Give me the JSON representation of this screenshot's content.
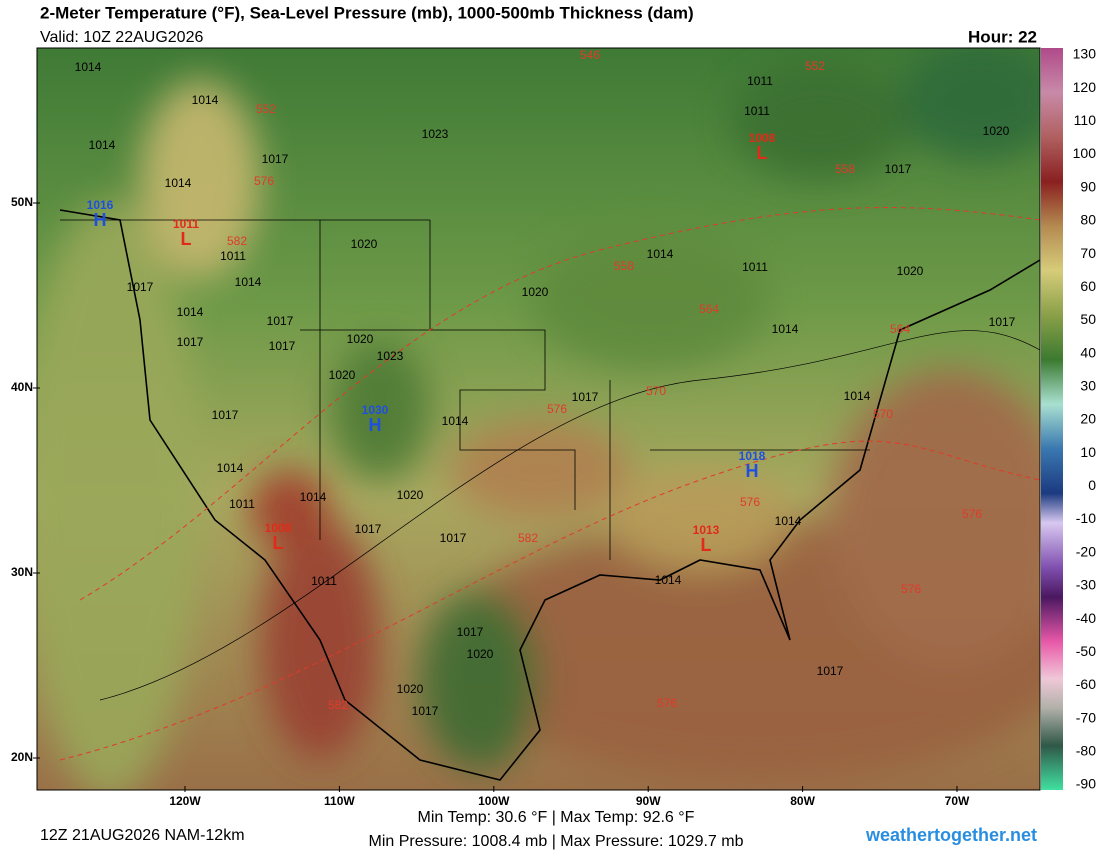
{
  "header": {
    "title": "2-Meter Temperature (°F), Sea-Level Pressure (mb), 1000-500mb Thickness (dam)",
    "valid": "Valid: 10Z 22AUG2026",
    "hour": "Hour: 22"
  },
  "footer": {
    "run": "12Z 21AUG2026 NAM-12km",
    "temps": "Min Temp:  30.6 °F | Max Temp:  92.6 °F",
    "pressures": "Min Pressure: 1008.4 mb | Max Pressure: 1029.7 mb",
    "site": "weathertogether.net"
  },
  "colorbar": {
    "ticks": [
      130,
      120,
      110,
      100,
      90,
      80,
      70,
      60,
      50,
      40,
      30,
      20,
      10,
      0,
      -10,
      -20,
      -30,
      -40,
      -50,
      -60,
      -70,
      -80,
      -90
    ]
  },
  "latitudes": [
    "50N",
    "40N",
    "30N",
    "20N"
  ],
  "longitudes": [
    "120W",
    "110W",
    "100W",
    "90W",
    "80W",
    "70W"
  ],
  "isobars": [
    "1014",
    "1014",
    "1014",
    "1017",
    "1014",
    "1020",
    "1011",
    "1014",
    "1017",
    "1014",
    "1017",
    "1017",
    "1017",
    "1020",
    "1023",
    "1020",
    "1014",
    "1017",
    "1014",
    "1014",
    "1011",
    "1020",
    "1017",
    "1017",
    "1011",
    "1017",
    "1020",
    "1020",
    "1017",
    "1023",
    "1020",
    "1017",
    "1014",
    "1011",
    "1014",
    "1011",
    "1011",
    "1017",
    "1020",
    "1020",
    "1017",
    "1014",
    "1014",
    "1014",
    "1017"
  ],
  "thickness": [
    "546",
    "552",
    "552",
    "558",
    "576",
    "582",
    "558",
    "564",
    "564",
    "570",
    "570",
    "576",
    "576",
    "576",
    "582",
    "576",
    "576",
    "582"
  ],
  "centers": [
    {
      "value": "1016",
      "letter": "H"
    },
    {
      "value": "1011",
      "letter": "L"
    },
    {
      "value": "1030",
      "letter": "H"
    },
    {
      "value": "1008",
      "letter": "L"
    },
    {
      "value": "1008",
      "letter": "L"
    },
    {
      "value": "1018",
      "letter": "H"
    },
    {
      "value": "1013",
      "letter": "L"
    }
  ]
}
